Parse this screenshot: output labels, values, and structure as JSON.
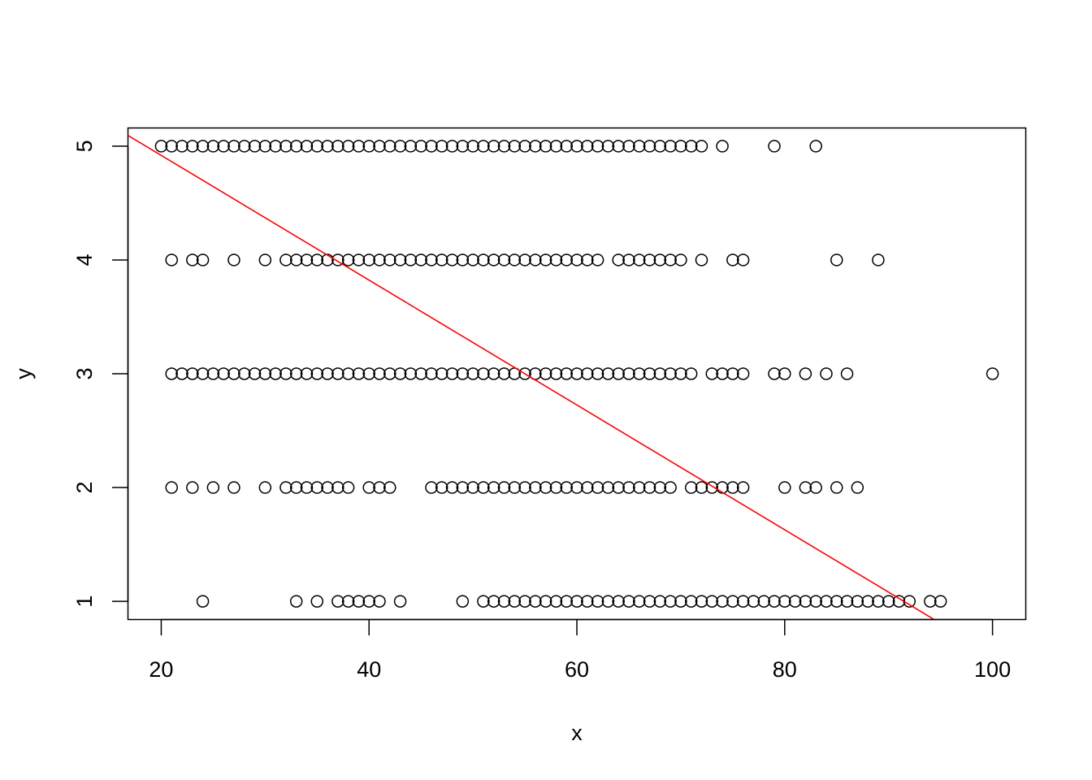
{
  "chart_data": {
    "type": "scatter",
    "title": "",
    "xlabel": "x",
    "ylabel": "y",
    "xlim": [
      16.8,
      103.2
    ],
    "ylim": [
      0.84,
      5.16
    ],
    "xticks": [
      20,
      40,
      60,
      80,
      100
    ],
    "yticks": [
      1,
      2,
      3,
      4,
      5
    ],
    "grid": false,
    "legend": "none",
    "point_color": "#000000",
    "line_color": "#ff0000",
    "regression_line": {
      "intercept": 6.016,
      "slope": -0.05484
    },
    "points": {
      "y5": [
        20,
        21,
        22,
        23,
        24,
        25,
        26,
        27,
        28,
        29,
        30,
        31,
        32,
        33,
        34,
        35,
        36,
        37,
        38,
        39,
        40,
        41,
        42,
        43,
        44,
        45,
        46,
        47,
        48,
        49,
        50,
        51,
        52,
        53,
        54,
        55,
        56,
        57,
        58,
        59,
        60,
        61,
        62,
        63,
        64,
        65,
        66,
        67,
        68,
        69,
        70,
        71,
        72,
        74,
        79,
        83
      ],
      "y4": [
        21,
        23,
        24,
        27,
        30,
        32,
        33,
        34,
        35,
        36,
        37,
        38,
        39,
        40,
        41,
        42,
        43,
        44,
        45,
        46,
        47,
        48,
        49,
        50,
        51,
        52,
        53,
        54,
        55,
        56,
        57,
        58,
        59,
        60,
        61,
        62,
        64,
        65,
        66,
        67,
        68,
        69,
        70,
        72,
        75,
        76,
        85,
        89
      ],
      "y3": [
        21,
        22,
        23,
        24,
        25,
        26,
        27,
        28,
        29,
        30,
        31,
        32,
        33,
        34,
        35,
        36,
        37,
        38,
        39,
        40,
        41,
        42,
        43,
        44,
        45,
        46,
        47,
        48,
        49,
        50,
        51,
        52,
        53,
        54,
        55,
        56,
        57,
        58,
        59,
        60,
        61,
        62,
        63,
        64,
        65,
        66,
        67,
        68,
        69,
        70,
        71,
        73,
        74,
        75,
        76,
        79,
        80,
        82,
        84,
        86,
        100
      ],
      "y2": [
        21,
        23,
        25,
        27,
        30,
        32,
        33,
        34,
        35,
        36,
        37,
        38,
        40,
        41,
        42,
        46,
        47,
        48,
        49,
        50,
        51,
        52,
        53,
        54,
        55,
        56,
        57,
        58,
        59,
        60,
        61,
        62,
        63,
        64,
        65,
        66,
        67,
        68,
        69,
        71,
        72,
        73,
        74,
        75,
        76,
        80,
        82,
        83,
        85,
        87
      ],
      "y1": [
        24,
        33,
        35,
        37,
        38,
        39,
        40,
        41,
        43,
        49,
        51,
        52,
        53,
        54,
        55,
        56,
        57,
        58,
        59,
        60,
        61,
        62,
        63,
        64,
        65,
        66,
        67,
        68,
        69,
        70,
        71,
        72,
        73,
        74,
        75,
        76,
        77,
        78,
        79,
        80,
        81,
        82,
        83,
        84,
        85,
        86,
        87,
        88,
        89,
        90,
        91,
        92,
        94,
        95
      ]
    }
  }
}
